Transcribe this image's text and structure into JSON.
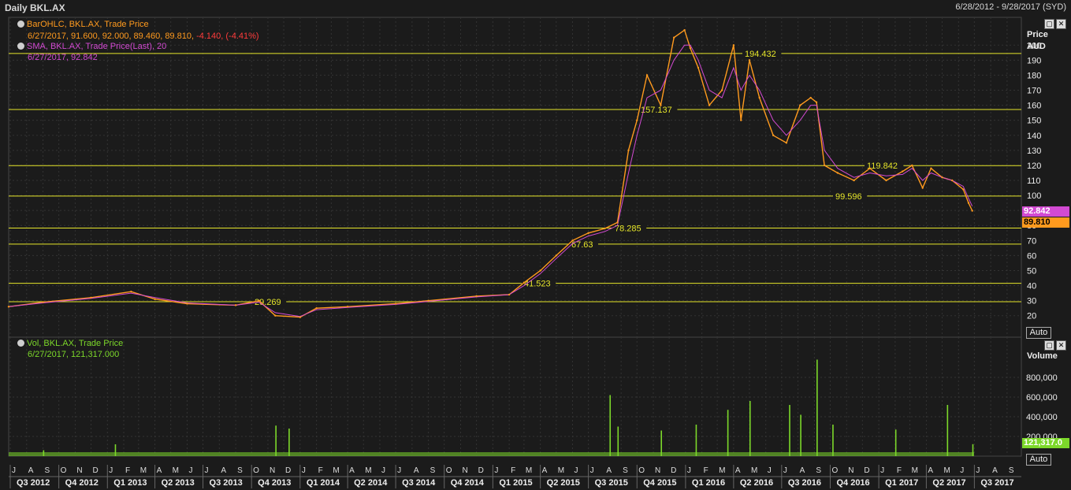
{
  "header": {
    "title": "Daily BKL.AX",
    "range": "6/28/2012 - 9/28/2017 (SYD)"
  },
  "legend": {
    "ohlc_label": "BarOHLC, BKL.AX, Trade Price",
    "ohlc_values": "6/27/2017, 91.600, 92.000, 89.460, 89.810,",
    "ohlc_change": "-4.140, (-4.41%)",
    "sma_label": "SMA, BKL.AX, Trade Price(Last),  20",
    "sma_values": "6/27/2017, 92.842",
    "vol_label": "Vol, BKL.AX, Trade Price",
    "vol_values": "6/27/2017, 121,317.000"
  },
  "price_axis": {
    "title_line1": "Price",
    "title_line2": "AUD",
    "auto_label": "Auto",
    "ticks": [
      20,
      30,
      40,
      50,
      60,
      70,
      80,
      90,
      100,
      110,
      120,
      130,
      140,
      150,
      160,
      170,
      180,
      190,
      200
    ]
  },
  "volume_axis": {
    "title": "Volume",
    "auto_label": "Auto",
    "ticks": [
      "200,000",
      "400,000",
      "600,000",
      "800,000"
    ]
  },
  "tags": {
    "sma_last": "92.842",
    "price_last": "89.810",
    "vol_last": "121,317.0"
  },
  "colors": {
    "price": "#ff9a1e",
    "sma": "#d24ad2",
    "volume": "#7cd82a",
    "levels": "#e6e62a",
    "grid": "#333333",
    "change": "#ff3b3b"
  },
  "months": [
    "J",
    "A",
    "S",
    "O",
    "N",
    "D",
    "J",
    "F",
    "M",
    "A",
    "M",
    "J",
    "J",
    "A",
    "S",
    "O",
    "N",
    "D",
    "J",
    "F",
    "M",
    "A",
    "M",
    "J",
    "J",
    "A",
    "S",
    "O",
    "N",
    "D",
    "J",
    "F",
    "M",
    "A",
    "M",
    "J",
    "J",
    "A",
    "S",
    "O",
    "N",
    "D",
    "J",
    "F",
    "M",
    "A",
    "M",
    "J",
    "J",
    "A",
    "S",
    "O",
    "N",
    "D",
    "J",
    "F",
    "M",
    "A",
    "M",
    "J",
    "J",
    "A",
    "S"
  ],
  "quarters": [
    "Q3 2012",
    "Q4 2012",
    "Q1 2013",
    "Q2 2013",
    "Q3 2013",
    "Q4 2013",
    "Q1 2014",
    "Q2 2014",
    "Q3 2014",
    "Q4 2014",
    "Q1 2015",
    "Q2 2015",
    "Q3 2015",
    "Q4 2015",
    "Q1 2016",
    "Q2 2016",
    "Q3 2016",
    "Q4 2016",
    "Q1 2017",
    "Q2 2017",
    "Q3 2017"
  ],
  "chart_data": {
    "type": "line",
    "title": "Daily BKL.AX",
    "ylabel": "Price AUD",
    "ylim": [
      12,
      208
    ],
    "levels": [
      {
        "value": 194.432,
        "label": "194.432"
      },
      {
        "value": 157.137,
        "label": "157.137"
      },
      {
        "value": 119.842,
        "label": "119.842"
      },
      {
        "value": 99.596,
        "label": "99.596"
      },
      {
        "value": 78.285,
        "label": "78.285"
      },
      {
        "value": 67.63,
        "label": "67.63"
      },
      {
        "value": 41.523,
        "label": "41.523"
      },
      {
        "value": 29.269,
        "label": "29.269"
      }
    ],
    "series": [
      {
        "name": "BarOHLC, BKL.AX, Trade Price",
        "x": [
          "2012-06-28",
          "2012-09-01",
          "2012-12-01",
          "2013-02-15",
          "2013-04-01",
          "2013-06-01",
          "2013-09-01",
          "2013-10-15",
          "2013-11-15",
          "2014-01-01",
          "2014-02-01",
          "2014-04-01",
          "2014-07-01",
          "2014-09-01",
          "2014-12-01",
          "2015-02-01",
          "2015-03-01",
          "2015-04-01",
          "2015-05-01",
          "2015-06-01",
          "2015-07-01",
          "2015-08-01",
          "2015-08-25",
          "2015-09-15",
          "2015-10-01",
          "2015-10-20",
          "2015-11-15",
          "2015-12-10",
          "2015-12-30",
          "2016-01-10",
          "2016-01-25",
          "2016-02-15",
          "2016-03-10",
          "2016-04-01",
          "2016-04-15",
          "2016-05-01",
          "2016-05-20",
          "2016-06-15",
          "2016-07-10",
          "2016-08-05",
          "2016-08-25",
          "2016-09-05",
          "2016-09-20",
          "2016-10-15",
          "2016-11-15",
          "2016-12-15",
          "2017-01-15",
          "2017-02-15",
          "2017-03-05",
          "2017-03-25",
          "2017-04-10",
          "2017-05-01",
          "2017-05-20",
          "2017-06-10",
          "2017-06-20",
          "2017-06-27"
        ],
        "y": [
          26,
          29,
          32,
          36,
          31,
          28,
          27,
          30,
          20,
          19,
          25,
          26,
          28,
          30,
          33,
          34,
          42,
          50,
          60,
          70,
          75,
          78,
          82,
          130,
          150,
          180,
          160,
          205,
          210,
          198,
          185,
          160,
          170,
          200,
          150,
          190,
          165,
          140,
          135,
          160,
          165,
          162,
          120,
          115,
          110,
          118,
          110,
          116,
          120,
          105,
          118,
          112,
          110,
          104,
          95,
          89.81
        ]
      },
      {
        "name": "SMA, BKL.AX, Trade Price(Last),  20",
        "x": [
          "2012-06-28",
          "2012-09-01",
          "2012-12-01",
          "2013-02-15",
          "2013-04-01",
          "2013-06-01",
          "2013-09-01",
          "2013-10-15",
          "2013-11-15",
          "2014-01-01",
          "2014-02-01",
          "2014-04-01",
          "2014-07-01",
          "2014-09-01",
          "2014-12-01",
          "2015-02-01",
          "2015-03-01",
          "2015-04-01",
          "2015-05-01",
          "2015-06-01",
          "2015-07-01",
          "2015-08-01",
          "2015-08-25",
          "2015-09-15",
          "2015-10-01",
          "2015-10-20",
          "2015-11-15",
          "2015-12-10",
          "2015-12-30",
          "2016-01-10",
          "2016-01-25",
          "2016-02-15",
          "2016-03-10",
          "2016-04-01",
          "2016-04-15",
          "2016-05-01",
          "2016-05-20",
          "2016-06-15",
          "2016-07-10",
          "2016-08-05",
          "2016-08-25",
          "2016-09-05",
          "2016-09-20",
          "2016-10-15",
          "2016-11-15",
          "2016-12-15",
          "2017-01-15",
          "2017-02-15",
          "2017-03-05",
          "2017-03-25",
          "2017-04-10",
          "2017-05-01",
          "2017-05-20",
          "2017-06-10",
          "2017-06-20",
          "2017-06-27"
        ],
        "y": [
          26,
          28.5,
          31.5,
          35,
          32,
          28.5,
          27,
          29,
          22,
          19.5,
          24,
          25.5,
          27.5,
          29.5,
          32.5,
          34,
          40,
          48,
          58,
          68,
          73,
          76,
          80,
          115,
          140,
          165,
          170,
          190,
          200,
          200,
          190,
          170,
          165,
          185,
          170,
          180,
          170,
          150,
          140,
          150,
          160,
          160,
          130,
          118,
          112,
          115,
          113,
          114,
          118,
          110,
          115,
          112,
          110,
          106,
          98,
          92.842
        ]
      },
      {
        "name": "Vol, BKL.AX, Trade Price",
        "type": "bar",
        "x": [
          "2012-09-01",
          "2013-01-15",
          "2013-11-15",
          "2013-12-10",
          "2015-08-10",
          "2015-08-25",
          "2015-11-15",
          "2016-01-20",
          "2016-03-20",
          "2016-05-01",
          "2016-07-15",
          "2016-08-05",
          "2016-09-05",
          "2016-10-05",
          "2017-02-01",
          "2017-05-10",
          "2017-06-27"
        ],
        "y": [
          60000,
          120000,
          310000,
          280000,
          620000,
          300000,
          260000,
          320000,
          470000,
          560000,
          520000,
          420000,
          980000,
          320000,
          270000,
          520000,
          121317
        ]
      }
    ]
  }
}
